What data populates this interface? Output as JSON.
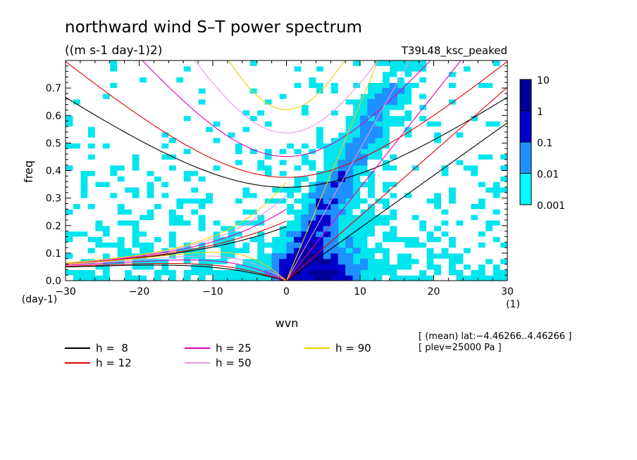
{
  "chart_data": {
    "type": "heatmap",
    "title": "northward wind S–T power spectrum",
    "subtitle": "((m s-1 day-1)2)",
    "run_label": "T39L48_ksc_peaked",
    "xlabel": "wvn",
    "ylabel": "freq",
    "x_unit": "(1)",
    "y_unit": "(day-1)",
    "xlim": [
      -30,
      30
    ],
    "ylim": [
      0,
      0.8
    ],
    "x_ticks": [
      -30,
      -20,
      -10,
      0,
      10,
      20,
      30
    ],
    "x_tick_labels": [
      "−30",
      "−20",
      "−10",
      "0",
      "10",
      "20",
      "30"
    ],
    "y_ticks": [
      0.0,
      0.1,
      0.2,
      0.3,
      0.4,
      0.5,
      0.6,
      0.7
    ],
    "y_tick_labels": [
      "0.0",
      "0.1",
      "0.2",
      "0.3",
      "0.4",
      "0.5",
      "0.6",
      "0.7"
    ],
    "colorbar": {
      "levels": [
        "0.001",
        "0.01",
        "0.1",
        "1",
        "10"
      ],
      "colors": [
        "#00ffff",
        "#1e90ff",
        "#0000cd",
        "#000099",
        "#4b0082"
      ]
    },
    "background_color": "#00e5ee",
    "annotations": [
      "[ (mean) lat:−4.46266..4.46266 ]",
      "[ plev=25000 Pa ]"
    ],
    "dispersion_curves": [
      {
        "label": "h =  8",
        "h": 8,
        "color": "#000000"
      },
      {
        "label": "h = 12",
        "h": 12,
        "color": "#e00000"
      },
      {
        "label": "h = 25",
        "h": 25,
        "color": "#e000c0"
      },
      {
        "label": "h = 50",
        "h": 50,
        "color": "#e896e8"
      },
      {
        "label": "h = 90",
        "h": 90,
        "color": "#f0d000"
      }
    ],
    "power_regions": [
      {
        "level": 0.001,
        "x_range": [
          -30,
          30
        ],
        "y_range": [
          0.0,
          0.8
        ],
        "note": "broad background"
      },
      {
        "level": 0.01,
        "x_range": [
          -12,
          18
        ],
        "y_range": [
          0.0,
          0.72
        ],
        "note": "diagonal eastward band"
      },
      {
        "level": 0.1,
        "x_range": [
          0,
          12
        ],
        "y_range": [
          0.0,
          0.45
        ],
        "note": "eastward core"
      },
      {
        "level": 1,
        "x_range": [
          2,
          8
        ],
        "y_range": [
          0.0,
          0.1
        ],
        "note": "low-frequency peak"
      }
    ]
  }
}
